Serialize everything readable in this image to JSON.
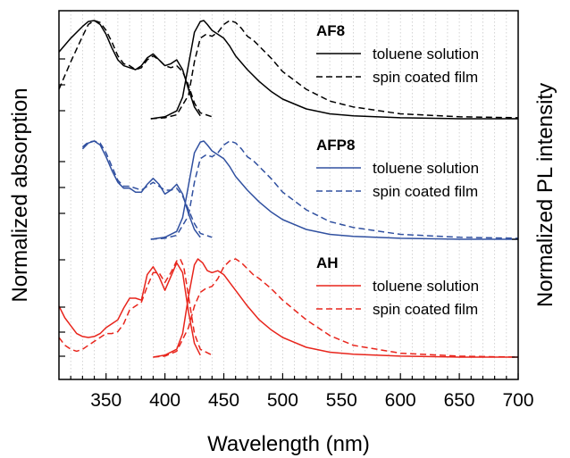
{
  "chart_data": {
    "type": "line",
    "xlabel": "Wavelength (nm)",
    "ylabel_left": "Normalized absorption",
    "ylabel_right": "Normalized PL intensity",
    "xlim": [
      310,
      700
    ],
    "x_ticks": [
      350,
      400,
      450,
      500,
      550,
      600,
      650,
      700
    ],
    "grid": "vertical dotted",
    "legend_placement": "inside, right of each panel",
    "line_styles": {
      "solid": "toluene solution",
      "dashed": "spin coated film"
    },
    "panels": [
      {
        "label": "AF8",
        "color": "#000000",
        "legend": [
          "toluene solution",
          "spin coated film"
        ],
        "series": [
          {
            "name": "toluene solution",
            "kind": "absorption",
            "x": [
              310,
              320,
              330,
              335,
              340,
              345,
              350,
              355,
              360,
              365,
              370,
              375,
              380,
              385,
              390,
              395,
              400,
              405,
              410,
              415,
              420,
              425,
              430
            ],
            "y": [
              0.68,
              0.82,
              0.94,
              0.99,
              1.0,
              0.96,
              0.86,
              0.72,
              0.6,
              0.54,
              0.52,
              0.5,
              0.54,
              0.62,
              0.66,
              0.6,
              0.54,
              0.56,
              0.6,
              0.5,
              0.3,
              0.12,
              0.03
            ]
          },
          {
            "name": "spin coated film",
            "kind": "absorption",
            "x": [
              310,
              320,
              330,
              335,
              340,
              345,
              350,
              355,
              360,
              365,
              370,
              375,
              380,
              385,
              390,
              395,
              400,
              405,
              410,
              415,
              420,
              425,
              430,
              440
            ],
            "y": [
              0.3,
              0.58,
              0.84,
              0.96,
              1.0,
              0.98,
              0.9,
              0.78,
              0.64,
              0.56,
              0.54,
              0.5,
              0.52,
              0.6,
              0.64,
              0.6,
              0.54,
              0.52,
              0.54,
              0.48,
              0.34,
              0.16,
              0.06,
              0.02
            ]
          },
          {
            "name": "toluene solution",
            "kind": "PL",
            "x": [
              388,
              400,
              410,
              415,
              420,
              425,
              430,
              433,
              436,
              440,
              445,
              450,
              455,
              460,
              470,
              480,
              490,
              500,
              520,
              540,
              560,
              600,
              650,
              700
            ],
            "y": [
              0,
              0.02,
              0.08,
              0.22,
              0.55,
              0.88,
              0.99,
              1.0,
              0.96,
              0.9,
              0.86,
              0.82,
              0.74,
              0.64,
              0.5,
              0.38,
              0.28,
              0.2,
              0.1,
              0.05,
              0.03,
              0.01,
              0,
              0
            ]
          },
          {
            "name": "spin coated film",
            "kind": "PL",
            "x": [
              388,
              400,
              410,
              420,
              425,
              430,
              435,
              440,
              445,
              450,
              455,
              460,
              465,
              470,
              475,
              480,
              490,
              500,
              520,
              540,
              560,
              600,
              650,
              700
            ],
            "y": [
              0,
              0.01,
              0.04,
              0.24,
              0.58,
              0.82,
              0.86,
              0.84,
              0.88,
              0.96,
              1.0,
              0.98,
              0.92,
              0.84,
              0.8,
              0.74,
              0.62,
              0.48,
              0.3,
              0.18,
              0.12,
              0.05,
              0.02,
              0.01
            ]
          }
        ]
      },
      {
        "label": "AFP8",
        "color": "#3050a0",
        "legend": [
          "toluene solution",
          "spin coated film"
        ],
        "series": [
          {
            "name": "toluene solution",
            "kind": "absorption",
            "x": [
              330,
              335,
              340,
              345,
              350,
              355,
              360,
              365,
              370,
              375,
              380,
              385,
              390,
              395,
              400,
              405,
              410,
              415,
              420,
              425,
              430
            ],
            "y": [
              0.92,
              0.98,
              1.0,
              0.96,
              0.84,
              0.7,
              0.58,
              0.52,
              0.52,
              0.48,
              0.48,
              0.56,
              0.62,
              0.56,
              0.46,
              0.5,
              0.56,
              0.46,
              0.26,
              0.1,
              0.02
            ]
          },
          {
            "name": "spin coated film",
            "kind": "absorption",
            "x": [
              330,
              335,
              340,
              345,
              350,
              355,
              360,
              365,
              370,
              375,
              380,
              385,
              390,
              395,
              400,
              405,
              410,
              415,
              420,
              425,
              430,
              440
            ],
            "y": [
              0.94,
              0.99,
              1.0,
              0.98,
              0.88,
              0.74,
              0.6,
              0.54,
              0.54,
              0.52,
              0.5,
              0.54,
              0.58,
              0.54,
              0.5,
              0.5,
              0.52,
              0.44,
              0.3,
              0.16,
              0.06,
              0.02
            ]
          },
          {
            "name": "toluene solution",
            "kind": "PL",
            "x": [
              388,
              400,
              410,
              415,
              420,
              425,
              430,
              433,
              436,
              440,
              445,
              450,
              455,
              460,
              470,
              480,
              490,
              500,
              520,
              540,
              560,
              600,
              650,
              700
            ],
            "y": [
              0,
              0.02,
              0.08,
              0.22,
              0.55,
              0.88,
              0.99,
              1.0,
              0.96,
              0.9,
              0.86,
              0.82,
              0.74,
              0.64,
              0.5,
              0.38,
              0.28,
              0.2,
              0.1,
              0.05,
              0.03,
              0.01,
              0,
              0
            ]
          },
          {
            "name": "spin coated film",
            "kind": "PL",
            "x": [
              388,
              400,
              410,
              420,
              425,
              430,
              435,
              440,
              445,
              450,
              455,
              460,
              465,
              470,
              475,
              480,
              490,
              500,
              520,
              540,
              560,
              600,
              650,
              700
            ],
            "y": [
              0,
              0.01,
              0.04,
              0.24,
              0.58,
              0.82,
              0.86,
              0.84,
              0.88,
              0.96,
              1.0,
              0.98,
              0.92,
              0.84,
              0.8,
              0.74,
              0.62,
              0.48,
              0.3,
              0.18,
              0.12,
              0.05,
              0.02,
              0.01
            ]
          }
        ]
      },
      {
        "label": "AH",
        "color": "#e8251c",
        "legend": [
          "toluene solution",
          "spin coated film"
        ],
        "series": [
          {
            "name": "toluene solution",
            "kind": "absorption",
            "x": [
              310,
              315,
              320,
              325,
              330,
              335,
              340,
              345,
              350,
              355,
              360,
              365,
              370,
              375,
              380,
              385,
              390,
              395,
              400,
              405,
              410,
              415,
              420,
              425,
              430
            ],
            "y": [
              0.52,
              0.4,
              0.32,
              0.24,
              0.21,
              0.2,
              0.21,
              0.24,
              0.3,
              0.34,
              0.38,
              0.5,
              0.6,
              0.6,
              0.58,
              0.84,
              0.92,
              0.82,
              0.68,
              0.82,
              0.96,
              0.86,
              0.46,
              0.14,
              0.02
            ]
          },
          {
            "name": "spin coated film",
            "kind": "absorption",
            "x": [
              310,
              315,
              320,
              325,
              330,
              335,
              340,
              345,
              350,
              355,
              360,
              365,
              370,
              375,
              380,
              385,
              390,
              395,
              400,
              405,
              410,
              413,
              416,
              420,
              425,
              430,
              440
            ],
            "y": [
              0.2,
              0.12,
              0.08,
              0.06,
              0.08,
              0.12,
              0.16,
              0.2,
              0.24,
              0.24,
              0.26,
              0.34,
              0.48,
              0.52,
              0.56,
              0.72,
              0.86,
              0.86,
              0.76,
              0.86,
              0.98,
              1.0,
              0.92,
              0.62,
              0.24,
              0.08,
              0.02
            ]
          },
          {
            "name": "toluene solution",
            "kind": "PL",
            "x": [
              390,
              400,
              410,
              415,
              420,
              425,
              428,
              432,
              436,
              440,
              445,
              450,
              455,
              460,
              470,
              480,
              490,
              500,
              520,
              540,
              560,
              600,
              650,
              700
            ],
            "y": [
              0,
              0.02,
              0.08,
              0.24,
              0.62,
              0.94,
              1.0,
              0.96,
              0.88,
              0.86,
              0.88,
              0.84,
              0.76,
              0.68,
              0.52,
              0.38,
              0.28,
              0.2,
              0.1,
              0.05,
              0.03,
              0.01,
              0,
              0
            ]
          },
          {
            "name": "spin coated film",
            "kind": "PL",
            "x": [
              390,
              400,
              410,
              420,
              425,
              430,
              435,
              440,
              445,
              450,
              455,
              460,
              465,
              470,
              475,
              480,
              490,
              500,
              520,
              540,
              560,
              600,
              650,
              700
            ],
            "y": [
              0,
              0.01,
              0.06,
              0.3,
              0.52,
              0.66,
              0.7,
              0.72,
              0.8,
              0.92,
              0.98,
              1.0,
              0.96,
              0.9,
              0.84,
              0.8,
              0.7,
              0.58,
              0.38,
              0.22,
              0.12,
              0.04,
              0.01,
              0
            ]
          }
        ]
      }
    ]
  }
}
